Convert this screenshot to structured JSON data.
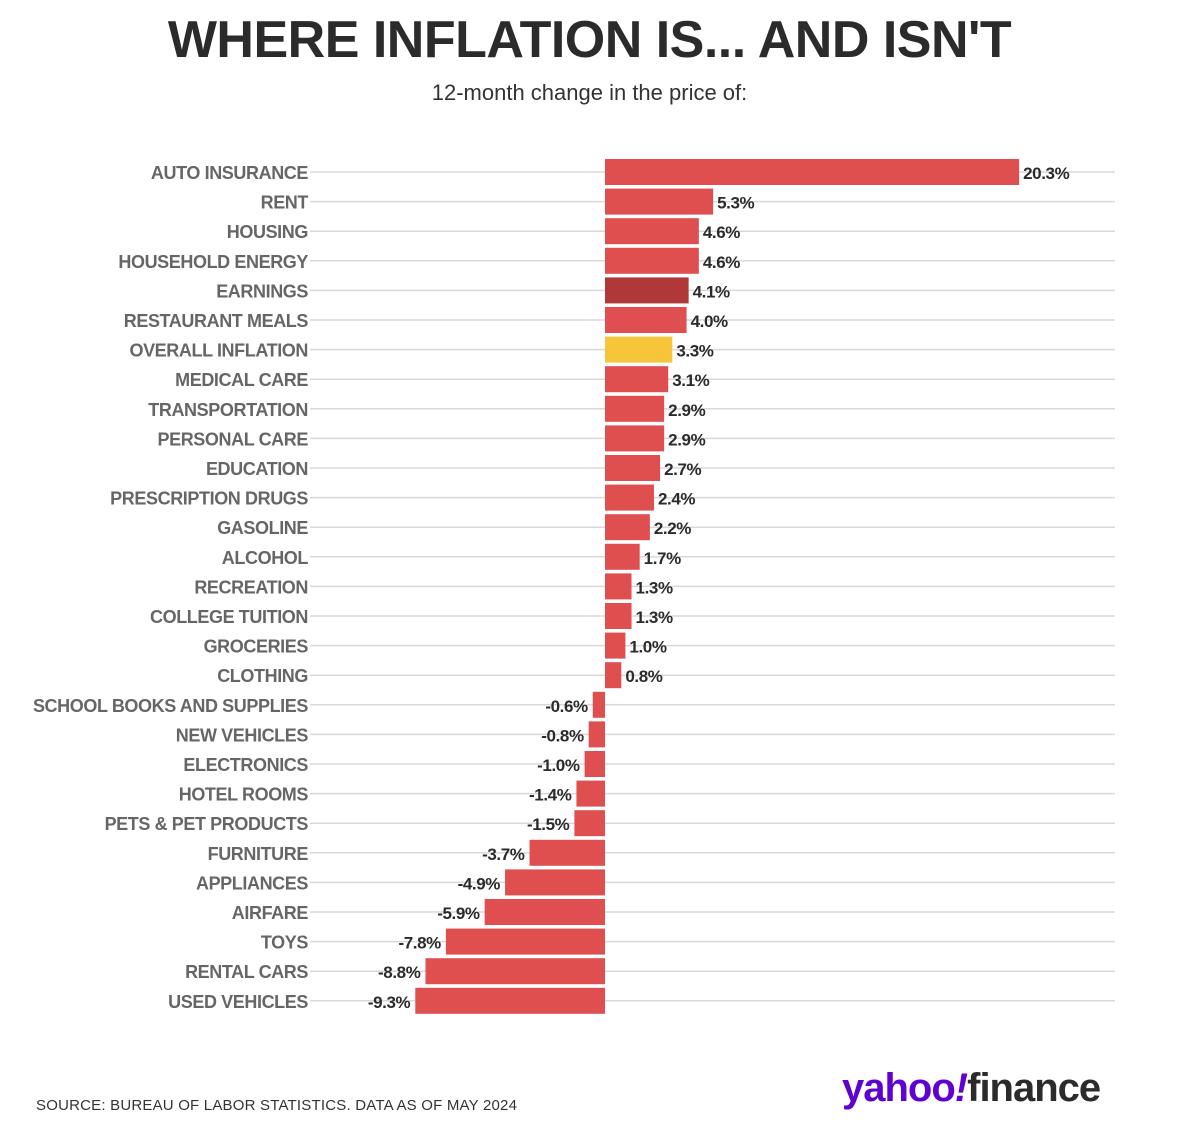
{
  "title": "WHERE INFLATION IS... AND ISN'T",
  "subtitle": "12-month change in the price of:",
  "source": "SOURCE: BUREAU OF LABOR STATISTICS. DATA AS OF MAY 2024",
  "logo": {
    "yahoo": "yahoo",
    "bang": "!",
    "finance": "finance"
  },
  "colors": {
    "bar": "#e04f4f",
    "earnings": "#b03838",
    "overall_inflation": "#f7c53a",
    "label": "#666666",
    "value_label": "#2b2b2b",
    "gridline": "#d9d9d9",
    "brand": "#5f01d1"
  },
  "chart_data": {
    "type": "bar",
    "orientation": "horizontal",
    "categories": [
      "AUTO INSURANCE",
      "RENT",
      "HOUSING",
      "HOUSEHOLD ENERGY",
      "EARNINGS",
      "RESTAURANT MEALS",
      "OVERALL INFLATION",
      "MEDICAL CARE",
      "TRANSPORTATION",
      "PERSONAL CARE",
      "EDUCATION",
      "PRESCRIPTION DRUGS",
      "GASOLINE",
      "ALCOHOL",
      "RECREATION",
      "COLLEGE TUITION",
      "GROCERIES",
      "CLOTHING",
      "SCHOOL BOOKS AND SUPPLIES",
      "NEW VEHICLES",
      "ELECTRONICS",
      "HOTEL ROOMS",
      "PETS & PET PRODUCTS",
      "FURNITURE",
      "APPLIANCES",
      "AIRFARE",
      "TOYS",
      "RENTAL CARS",
      "USED VEHICLES"
    ],
    "values": [
      20.3,
      5.3,
      4.6,
      4.6,
      4.1,
      4.0,
      3.3,
      3.1,
      2.9,
      2.9,
      2.7,
      2.4,
      2.2,
      1.7,
      1.3,
      1.3,
      1.0,
      0.8,
      -0.6,
      -0.8,
      -1.0,
      -1.4,
      -1.5,
      -3.7,
      -4.9,
      -5.9,
      -7.8,
      -8.8,
      -9.3
    ],
    "value_labels": [
      "20.3%",
      "5.3%",
      "4.6%",
      "4.6%",
      "4.1%",
      "4.0%",
      "3.3%",
      "3.1%",
      "2.9%",
      "2.9%",
      "2.7%",
      "2.4%",
      "2.2%",
      "1.7%",
      "1.3%",
      "1.3%",
      "1.0%",
      "0.8%",
      "-0.6%",
      "-0.8%",
      "-1.0%",
      "-1.4%",
      "-1.5%",
      "-3.7%",
      "-4.9%",
      "-5.9%",
      "-7.8%",
      "-8.8%",
      "-9.3%"
    ],
    "highlight": {
      "EARNINGS": "earnings",
      "OVERALL INFLATION": "overall_inflation"
    },
    "xlim": [
      -10,
      25
    ],
    "grid": true,
    "legend": "none"
  }
}
